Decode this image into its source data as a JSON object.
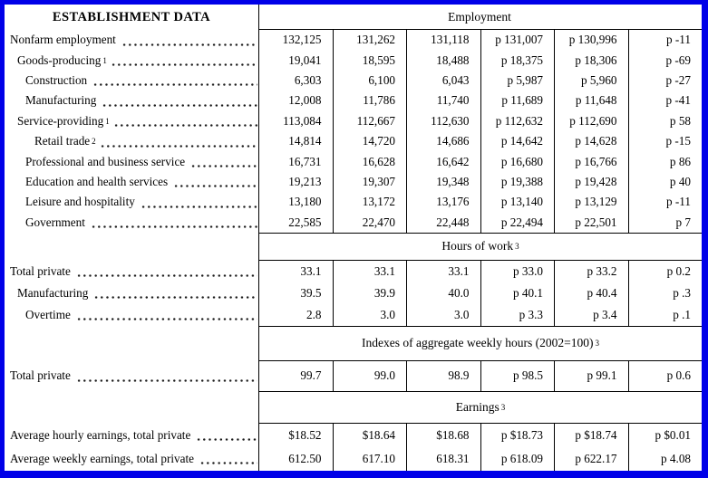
{
  "colors": {
    "frame_blue": "#0000e8",
    "rule_black": "#000000",
    "text": "#000000",
    "background": "#ffffff"
  },
  "table": {
    "stub_header": "ESTABLISHMENT DATA",
    "sections": [
      {
        "header": "Employment",
        "header_sup": "",
        "rows": [
          {
            "label": "Nonfarm employment",
            "sup": "",
            "cells": [
              "132,125",
              "131,262",
              "131,118",
              "p 131,007",
              "p 130,996",
              "p -11"
            ]
          },
          {
            "label": "Goods-producing",
            "sup": "1",
            "cells": [
              "19,041",
              "18,595",
              "18,488",
              "p 18,375",
              "p 18,306",
              "p -69"
            ]
          },
          {
            "label": "Construction",
            "sup": "",
            "cells": [
              "6,303",
              "6,100",
              "6,043",
              "p 5,987",
              "p 5,960",
              "p -27"
            ]
          },
          {
            "label": "Manufacturing",
            "sup": "",
            "cells": [
              "12,008",
              "11,786",
              "11,740",
              "p 11,689",
              "p 11,648",
              "p -41"
            ]
          },
          {
            "label": "Service-providing",
            "sup": "1",
            "cells": [
              "113,084",
              "112,667",
              "112,630",
              "p 112,632",
              "p 112,690",
              "p 58"
            ]
          },
          {
            "label": "Retail trade",
            "sup": "2",
            "cells": [
              "14,814",
              "14,720",
              "14,686",
              "p 14,642",
              "p 14,628",
              "p -15"
            ]
          },
          {
            "label": "Professional and business service",
            "sup": "",
            "cells": [
              "16,731",
              "16,628",
              "16,642",
              "p 16,680",
              "p 16,766",
              "p 86"
            ]
          },
          {
            "label": "Education and health services",
            "sup": "",
            "cells": [
              "19,213",
              "19,307",
              "19,348",
              "p 19,388",
              "p 19,428",
              "p 40"
            ]
          },
          {
            "label": "Leisure and hospitality",
            "sup": "",
            "cells": [
              "13,180",
              "13,172",
              "13,176",
              "p 13,140",
              "p 13,129",
              "p -11"
            ]
          },
          {
            "label": "Government",
            "sup": "",
            "cells": [
              "22,585",
              "22,470",
              "22,448",
              "p 22,494",
              "p 22,501",
              "p 7"
            ]
          }
        ]
      },
      {
        "header": "Hours of work",
        "header_sup": "3",
        "rows": [
          {
            "label": "Total private",
            "sup": "",
            "cells": [
              "33.1",
              "33.1",
              "33.1",
              "p 33.0",
              "p 33.2",
              "p 0.2"
            ]
          },
          {
            "label": "Manufacturing",
            "sup": "",
            "cells": [
              "39.5",
              "39.9",
              "40.0",
              "p 40.1",
              "p 40.4",
              "p .3"
            ]
          },
          {
            "label": "Overtime",
            "sup": "",
            "cells": [
              "2.8",
              "3.0",
              "3.0",
              "p 3.3",
              "p 3.4",
              "p .1"
            ]
          }
        ]
      },
      {
        "header": "Indexes of aggregate weekly hours (2002=100)",
        "header_sup": "3",
        "rows": [
          {
            "label": "Total private",
            "sup": "",
            "cells": [
              "99.7",
              "99.0",
              "98.9",
              "p 98.5",
              "p 99.1",
              "p 0.6"
            ]
          }
        ]
      },
      {
        "header": "Earnings",
        "header_sup": "3",
        "rows": [
          {
            "label": "Average hourly earnings, total private",
            "sup": "",
            "cells": [
              "$18.52",
              "$18.64",
              "$18.68",
              "p $18.73",
              "p $18.74",
              "p $0.01"
            ]
          },
          {
            "label": "Average weekly earnings, total private",
            "sup": "",
            "cells": [
              "612.50",
              "617.10",
              "618.31",
              "p 618.09",
              "p 622.17",
              "p 4.08"
            ]
          }
        ]
      }
    ]
  }
}
